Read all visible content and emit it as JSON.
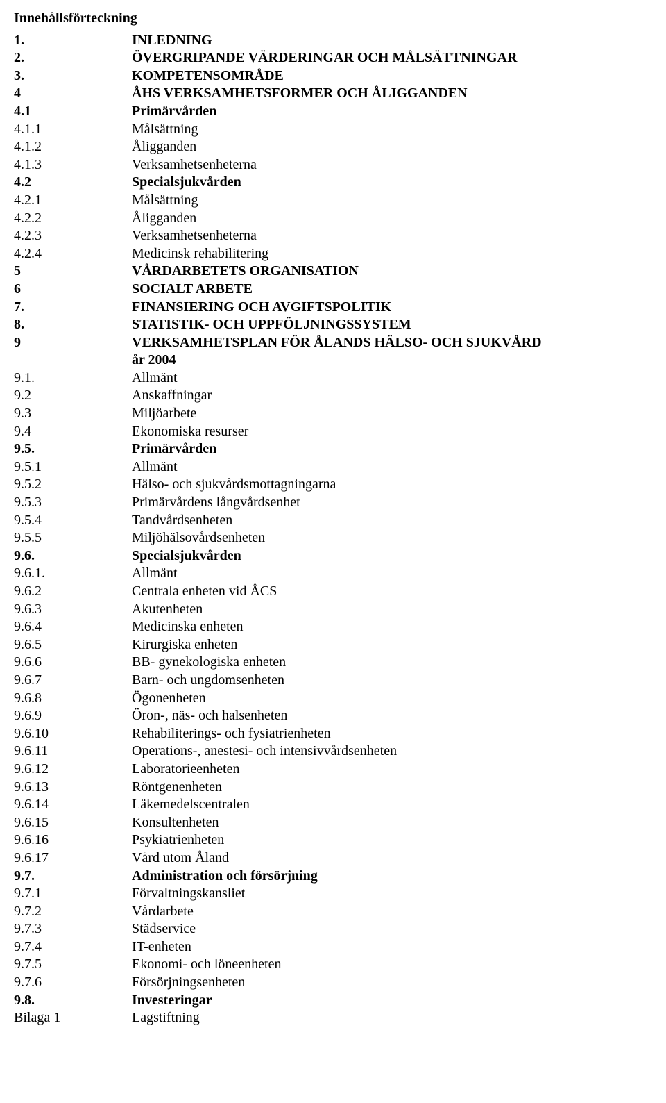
{
  "title": "Innehållsförteckning",
  "rows": [
    {
      "num": "1.",
      "text": "INLEDNING",
      "bold": true
    },
    {
      "num": "2.",
      "text": "ÖVERGRIPANDE VÄRDERINGAR OCH MÅLSÄTTNINGAR",
      "bold": true
    },
    {
      "num": "3.",
      "text": "KOMPETENSOMRÅDE",
      "bold": true
    },
    {
      "num": "4",
      "text": "ÅHS VERKSAMHETSFORMER OCH ÅLIGGANDEN",
      "bold": true
    },
    {
      "num": "4.1",
      "text": "Primärvården",
      "bold": true
    },
    {
      "num": "4.1.1",
      "text": "Målsättning",
      "bold": false
    },
    {
      "num": "4.1.2",
      "text": "Åligganden",
      "bold": false
    },
    {
      "num": "4.1.3",
      "text": "Verksamhetsenheterna",
      "bold": false
    },
    {
      "num": "4.2",
      "text": "Specialsjukvården",
      "bold": true
    },
    {
      "num": "4.2.1",
      "text": "Målsättning",
      "bold": false
    },
    {
      "num": "4.2.2",
      "text": "Åligganden",
      "bold": false
    },
    {
      "num": "4.2.3",
      "text": "Verksamhetsenheterna",
      "bold": false
    },
    {
      "num": "4.2.4",
      "text": "Medicinsk rehabilitering",
      "bold": false
    },
    {
      "num": "5",
      "text": "VÅRDARBETETS ORGANISATION",
      "bold": true
    },
    {
      "num": "6",
      "text": "SOCIALT ARBETE",
      "bold": true
    },
    {
      "num": "7.",
      "text": "FINANSIERING OCH AVGIFTSPOLITIK",
      "bold": true
    },
    {
      "num": "8.",
      "text": "STATISTIK- OCH UPPFÖLJNINGSSYSTEM",
      "bold": true
    },
    {
      "num": "9",
      "text": "VERKSAMHETSPLAN FÖR ÅLANDS HÄLSO- OCH SJUKVÅRD",
      "bold": true
    },
    {
      "indent": true,
      "text": "år 2004",
      "bold": true
    },
    {
      "num": "9.1.",
      "text": "Allmänt",
      "bold": false
    },
    {
      "num": "9.2",
      "text": "Anskaffningar",
      "bold": false
    },
    {
      "num": "9.3",
      "text": "Miljöarbete",
      "bold": false
    },
    {
      "num": "9.4",
      "text": "Ekonomiska resurser",
      "bold": false
    },
    {
      "num": "9.5.",
      "text": "Primärvården",
      "bold": true
    },
    {
      "num": "9.5.1",
      "text": "Allmänt",
      "bold": false
    },
    {
      "num": "9.5.2",
      "text": "Hälso- och sjukvårdsmottagningarna",
      "bold": false
    },
    {
      "num": "9.5.3",
      "text": "Primärvårdens långvårdsenhet",
      "bold": false
    },
    {
      "num": "9.5.4",
      "text": "Tandvårdsenheten",
      "bold": false
    },
    {
      "num": "9.5.5",
      "text": "Miljöhälsovårdsenheten",
      "bold": false
    },
    {
      "num": "9.6.",
      "text": "Specialsjukvården",
      "bold": true
    },
    {
      "num": "9.6.1.",
      "text": "Allmänt",
      "bold": false
    },
    {
      "num": "9.6.2",
      "text": "Centrala enheten vid ÅCS",
      "bold": false
    },
    {
      "num": "9.6.3",
      "text": "Akutenheten",
      "bold": false
    },
    {
      "num": "9.6.4",
      "text": "Medicinska enheten",
      "bold": false
    },
    {
      "num": "9.6.5",
      "text": "Kirurgiska enheten",
      "bold": false
    },
    {
      "num": "9.6.6",
      "text": "BB- gynekologiska enheten",
      "bold": false
    },
    {
      "num": "9.6.7",
      "text": "Barn- och ungdomsenheten",
      "bold": false
    },
    {
      "num": "9.6.8",
      "text": "Ögonenheten",
      "bold": false
    },
    {
      "num": "9.6.9",
      "text": "Öron-, näs- och halsenheten",
      "bold": false
    },
    {
      "num": "9.6.10",
      "text": "Rehabiliterings- och fysiatrienheten",
      "bold": false
    },
    {
      "num": "9.6.11",
      "text": "Operations-, anestesi- och intensivvårdsenheten",
      "bold": false
    },
    {
      "num": "9.6.12",
      "text": "Laboratorieenheten",
      "bold": false
    },
    {
      "num": "9.6.13",
      "text": "Röntgenenheten",
      "bold": false
    },
    {
      "num": "9.6.14",
      "text": "Läkemedelscentralen",
      "bold": false
    },
    {
      "num": "9.6.15",
      "text": "Konsultenheten",
      "bold": false
    },
    {
      "num": "9.6.16",
      "text": "Psykiatrienheten",
      "bold": false
    },
    {
      "num": "9.6.17",
      "text": "Vård utom Åland",
      "bold": false
    },
    {
      "num": "9.7.",
      "text": "Administration och försörjning",
      "bold": true
    },
    {
      "num": "9.7.1",
      "text": "Förvaltningskansliet",
      "bold": false
    },
    {
      "num": "9.7.2",
      "text": "Vårdarbete",
      "bold": false
    },
    {
      "num": "9.7.3",
      "text": "Städservice",
      "bold": false
    },
    {
      "num": "9.7.4",
      "text": "IT-enheten",
      "bold": false
    },
    {
      "num": "9.7.5",
      "text": "Ekonomi- och löneenheten",
      "bold": false
    },
    {
      "num": "9.7.6",
      "text": "Försörjningsenheten",
      "bold": false
    },
    {
      "num": "9.8.",
      "text": "Investeringar",
      "bold": true
    },
    {
      "num": "Bilaga 1",
      "text": "Lagstiftning",
      "bold": false
    }
  ]
}
